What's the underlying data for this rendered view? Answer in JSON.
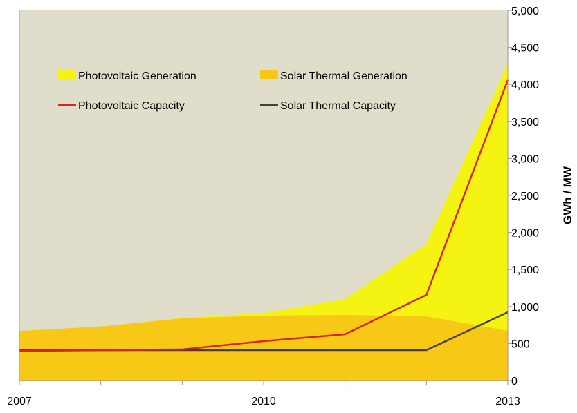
{
  "chart_data": {
    "type": "area",
    "title": "",
    "xlabel": "",
    "ylabel": "GWh / MW",
    "x": [
      2007,
      2008,
      2009,
      2010,
      2011,
      2012,
      2013
    ],
    "x_tick_labels": [
      "2007",
      "2010",
      "2013"
    ],
    "ylim": [
      0,
      5000
    ],
    "y_ticks": [
      "0",
      "500",
      "1,000",
      "1,500",
      "2,000",
      "2,500",
      "3,000",
      "3,500",
      "4,000",
      "4,500",
      "5,000"
    ],
    "y_axis_position": "right",
    "grid": false,
    "legend_position": "top-left",
    "plot_background": "#e1ddcb",
    "stacked_areas": [
      {
        "name": "Solar Thermal Generation",
        "color": "#f7c815",
        "values": [
          670,
          730,
          840,
          877,
          886,
          868,
          672
        ]
      },
      {
        "name": "Photovoltaic Generation",
        "color": "#f5f311",
        "values": [
          0,
          0,
          5,
          37,
          214,
          979,
          3610
        ]
      }
    ],
    "lines": [
      {
        "name": "Photovoltaic Capacity",
        "color": "#e0201b",
        "values": [
          400,
          410,
          420,
          532,
          625,
          1157,
          4060
        ]
      },
      {
        "name": "Solar Thermal Capacity",
        "color": "#404040",
        "values": [
          410,
          410,
          410,
          410,
          410,
          410,
          923
        ]
      }
    ]
  }
}
